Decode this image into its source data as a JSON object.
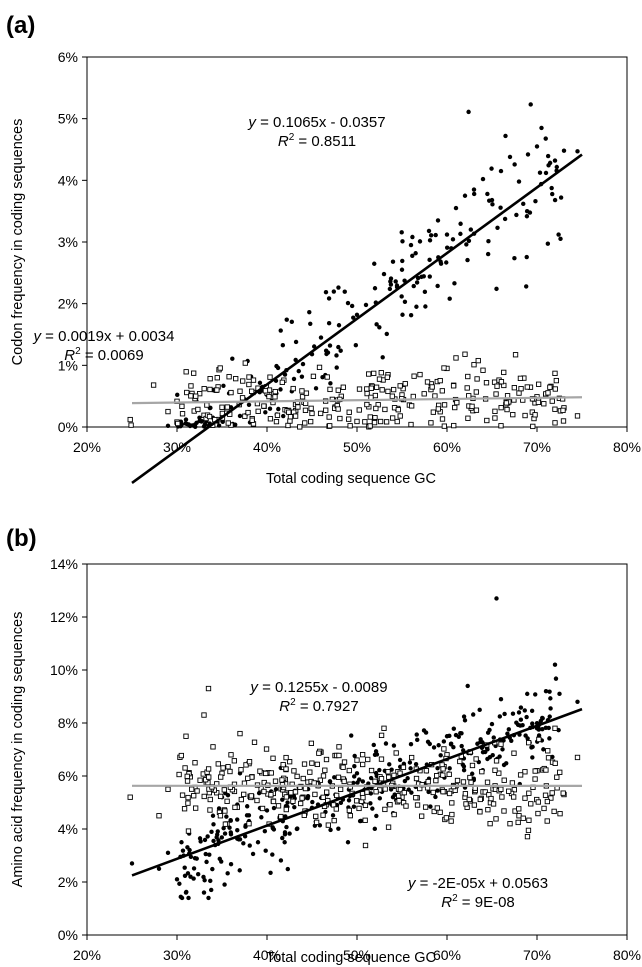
{
  "chart_data": [
    {
      "panel_label": "(a)",
      "type": "scatter",
      "xlabel": "Total coding sequence GC",
      "ylabel": "Codon frequency in coding sequences",
      "xlim": [
        0.2,
        0.8
      ],
      "ylim": [
        0,
        0.06
      ],
      "x_ticks": [
        "20%",
        "30%",
        "40%",
        "50%",
        "60%",
        "70%",
        "80%"
      ],
      "y_ticks": [
        "0%",
        "1%",
        "2%",
        "3%",
        "4%",
        "5%",
        "6%"
      ],
      "grid": false,
      "legend": "none",
      "seed": 11,
      "series": [
        {
          "marker": "filled-circle",
          "color": "#000000",
          "trend": {
            "slope": 0.1065,
            "intercept": -0.0357,
            "x_range": [
              0.25,
              0.75
            ],
            "color": "#000000"
          },
          "equation": {
            "prefix": "y",
            "body": " = 0.1065x - 0.0357"
          },
          "r2": {
            "label": "R",
            "sup": "2",
            "value": " = 0.8511"
          },
          "anchors": [
            [
              0.29,
              0.0002
            ],
            [
              0.3,
              0.0005
            ],
            [
              0.31,
              0.0012
            ],
            [
              0.32,
              0.0004
            ],
            [
              0.33,
              0.0001
            ],
            [
              0.34,
              0.0015
            ],
            [
              0.35,
              0.0011
            ],
            [
              0.36,
              0.0032
            ],
            [
              0.37,
              0.0018
            ],
            [
              0.375,
              0.0045
            ],
            [
              0.38,
              0.0036
            ],
            [
              0.385,
              0.0055
            ],
            [
              0.39,
              0.0025
            ],
            [
              0.395,
              0.0065
            ],
            [
              0.4,
              0.0052
            ],
            [
              0.405,
              0.0042
            ],
            [
              0.41,
              0.0075
            ],
            [
              0.415,
              0.0061
            ],
            [
              0.42,
              0.0085
            ],
            [
              0.43,
              0.0078
            ],
            [
              0.44,
              0.0102
            ],
            [
              0.45,
              0.0118
            ],
            [
              0.46,
              0.0145
            ],
            [
              0.47,
              0.0132
            ],
            [
              0.48,
              0.0165
            ],
            [
              0.49,
              0.0201
            ],
            [
              0.5,
              0.0182
            ],
            [
              0.51,
              0.0198
            ],
            [
              0.52,
              0.0225
            ],
            [
              0.53,
              0.0248
            ],
            [
              0.54,
              0.0268
            ],
            [
              0.55,
              0.0255
            ],
            [
              0.56,
              0.0295
            ],
            [
              0.57,
              0.0301
            ],
            [
              0.58,
              0.0318
            ],
            [
              0.59,
              0.0335
            ],
            [
              0.6,
              0.0312
            ],
            [
              0.61,
              0.0355
            ],
            [
              0.62,
              0.0375
            ],
            [
              0.63,
              0.0385
            ],
            [
              0.64,
              0.0402
            ],
            [
              0.65,
              0.0368
            ],
            [
              0.66,
              0.0415
            ],
            [
              0.67,
              0.0438
            ],
            [
              0.68,
              0.0398
            ],
            [
              0.69,
              0.0442
            ],
            [
              0.7,
              0.0455
            ],
            [
              0.71,
              0.0412
            ],
            [
              0.72,
              0.0432
            ],
            [
              0.73,
              0.0448
            ],
            [
              0.745,
              0.0447
            ],
            [
              0.624,
              0.0511
            ],
            [
              0.693,
              0.0523
            ],
            [
              0.665,
              0.0472
            ],
            [
              0.705,
              0.0485
            ],
            [
              0.655,
              0.0224
            ],
            [
              0.603,
              0.0208
            ],
            [
              0.688,
              0.0228
            ],
            [
              0.724,
              0.0312
            ],
            [
              0.566,
              0.0195
            ],
            [
              0.543,
              0.0236
            ]
          ],
          "band": {
            "count": 170,
            "x_range": [
              0.3,
              0.73
            ],
            "sd": 0.0045,
            "min": 0.0
          }
        },
        {
          "marker": "open-square",
          "color": "#000000",
          "trend": {
            "slope": 0.0019,
            "intercept": 0.0034,
            "x_range": [
              0.25,
              0.75
            ],
            "color": "#a6a6a6"
          },
          "equation": {
            "prefix": "y",
            "body": " = 0.0019x + 0.0034"
          },
          "r2": {
            "label": "R",
            "sup": "2",
            "value": " = 0.0069"
          },
          "anchors": [
            [
              0.248,
              0.0012
            ],
            [
              0.249,
              0.0003
            ],
            [
              0.274,
              0.0068
            ],
            [
              0.29,
              0.0025
            ],
            [
              0.3,
              0.0008
            ],
            [
              0.32,
              0.0046
            ],
            [
              0.33,
              0.0019
            ],
            [
              0.35,
              0.0032
            ],
            [
              0.37,
              0.0058
            ],
            [
              0.38,
              0.0081
            ],
            [
              0.385,
              0.0076
            ],
            [
              0.39,
              0.0063
            ],
            [
              0.4,
              0.0055
            ],
            [
              0.42,
              0.0028
            ],
            [
              0.45,
              0.0022
            ],
            [
              0.47,
              0.0061
            ],
            [
              0.5,
              0.0009
            ],
            [
              0.52,
              0.0015
            ],
            [
              0.55,
              0.0052
            ],
            [
              0.57,
              0.0085
            ],
            [
              0.6,
              0.0095
            ],
            [
              0.61,
              0.0112
            ],
            [
              0.62,
              0.0118
            ],
            [
              0.63,
              0.0101
            ],
            [
              0.64,
              0.0092
            ],
            [
              0.66,
              0.0073
            ],
            [
              0.68,
              0.0055
            ],
            [
              0.7,
              0.0049
            ],
            [
              0.72,
              0.0087
            ],
            [
              0.745,
              0.0018
            ],
            [
              0.36,
              0.0003
            ],
            [
              0.56,
              0.0004
            ],
            [
              0.66,
              0.0002
            ]
          ],
          "band": {
            "count": 260,
            "x_range": [
              0.3,
              0.73
            ],
            "sd": 0.0025,
            "min": 0.0
          }
        }
      ]
    },
    {
      "panel_label": "(b)",
      "type": "scatter",
      "xlabel": "Total coding sequence GC",
      "ylabel": "Amino acid frequency in coding sequences",
      "xlim": [
        0.2,
        0.8
      ],
      "ylim": [
        0,
        0.14
      ],
      "x_ticks": [
        "20%",
        "30%",
        "40%",
        "50%",
        "60%",
        "70%",
        "80%"
      ],
      "y_ticks": [
        "0%",
        "2%",
        "4%",
        "6%",
        "8%",
        "10%",
        "12%",
        "14%"
      ],
      "grid": false,
      "legend": "none",
      "seed": 29,
      "series": [
        {
          "marker": "filled-circle",
          "color": "#000000",
          "trend": {
            "slope": 0.1255,
            "intercept": -0.0089,
            "x_range": [
              0.25,
              0.75
            ],
            "color": "#000000"
          },
          "equation": {
            "prefix": "y",
            "body": " = 0.1255x - 0.0089"
          },
          "r2": {
            "label": "R",
            "sup": "2",
            "value": " = 0.7927"
          },
          "anchors": [
            [
              0.25,
              0.027
            ],
            [
              0.28,
              0.025
            ],
            [
              0.29,
              0.031
            ],
            [
              0.3,
              0.021
            ],
            [
              0.305,
              0.035
            ],
            [
              0.31,
              0.016
            ],
            [
              0.315,
              0.022
            ],
            [
              0.32,
              0.029
            ],
            [
              0.33,
              0.016
            ],
            [
              0.335,
              0.014
            ],
            [
              0.338,
              0.017
            ],
            [
              0.34,
              0.045
            ],
            [
              0.35,
              0.052
            ],
            [
              0.36,
              0.038
            ],
            [
              0.37,
              0.061
            ],
            [
              0.38,
              0.043
            ],
            [
              0.39,
              0.035
            ],
            [
              0.4,
              0.047
            ],
            [
              0.41,
              0.055
            ],
            [
              0.42,
              0.038
            ],
            [
              0.43,
              0.062
            ],
            [
              0.45,
              0.048
            ],
            [
              0.47,
              0.058
            ],
            [
              0.49,
              0.035
            ],
            [
              0.5,
              0.061
            ],
            [
              0.52,
              0.068
            ],
            [
              0.54,
              0.052
            ],
            [
              0.56,
              0.072
            ],
            [
              0.58,
              0.059
            ],
            [
              0.6,
              0.075
            ],
            [
              0.62,
              0.081
            ],
            [
              0.623,
              0.094
            ],
            [
              0.64,
              0.069
            ],
            [
              0.655,
              0.127
            ],
            [
              0.66,
              0.089
            ],
            [
              0.68,
              0.084
            ],
            [
              0.7,
              0.078
            ],
            [
              0.71,
              0.092
            ],
            [
              0.72,
              0.102
            ],
            [
              0.725,
              0.091
            ],
            [
              0.745,
              0.088
            ]
          ],
          "band": {
            "count": 330,
            "x_range": [
              0.3,
              0.73
            ],
            "sd": 0.0075,
            "min": 0.005
          }
        },
        {
          "marker": "open-square",
          "color": "#000000",
          "trend": {
            "slope": -2e-05,
            "intercept": 0.0563,
            "x_range": [
              0.25,
              0.75
            ],
            "color": "#a6a6a6"
          },
          "equation": {
            "prefix": "y",
            "body": " = -2E-05x + 0.0563"
          },
          "r2": {
            "label": "R",
            "sup": "2",
            "value": " = 9E-08"
          },
          "anchors": [
            [
              0.248,
              0.052
            ],
            [
              0.28,
              0.045
            ],
            [
              0.29,
              0.055
            ],
            [
              0.31,
              0.075
            ],
            [
              0.32,
              0.065
            ],
            [
              0.33,
              0.083
            ],
            [
              0.335,
              0.093
            ],
            [
              0.34,
              0.071
            ],
            [
              0.35,
              0.061
            ],
            [
              0.36,
              0.068
            ],
            [
              0.37,
              0.076
            ],
            [
              0.38,
              0.042
            ],
            [
              0.4,
              0.061
            ],
            [
              0.42,
              0.058
            ],
            [
              0.44,
              0.052
            ],
            [
              0.46,
              0.069
            ],
            [
              0.48,
              0.071
            ],
            [
              0.5,
              0.066
            ],
            [
              0.52,
              0.058
            ],
            [
              0.53,
              0.078
            ],
            [
              0.55,
              0.052
            ],
            [
              0.57,
              0.062
            ],
            [
              0.6,
              0.068
            ],
            [
              0.62,
              0.052
            ],
            [
              0.64,
              0.054
            ],
            [
              0.66,
              0.072
            ],
            [
              0.67,
              0.042
            ],
            [
              0.68,
              0.045
            ],
            [
              0.7,
              0.062
            ],
            [
              0.72,
              0.078
            ],
            [
              0.73,
              0.053
            ],
            [
              0.745,
              0.067
            ]
          ],
          "band": {
            "count": 360,
            "x_range": [
              0.3,
              0.73
            ],
            "sd": 0.0075,
            "min": 0.03
          }
        }
      ]
    }
  ]
}
